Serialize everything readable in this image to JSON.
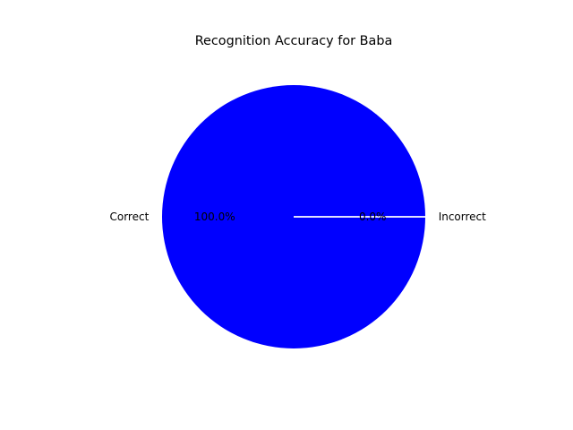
{
  "chart_data": {
    "type": "pie",
    "title": "Recognition Accuracy for Baba",
    "labels": [
      "Correct",
      "Incorrect"
    ],
    "values": [
      100.0,
      0.0
    ],
    "percent_labels": [
      "100.0%",
      "0.0%"
    ],
    "colors": [
      "#0000ff",
      "#ff0000"
    ],
    "wedge_edge_color": "#ffffff",
    "start_angle_deg": 0,
    "legend": "none"
  }
}
